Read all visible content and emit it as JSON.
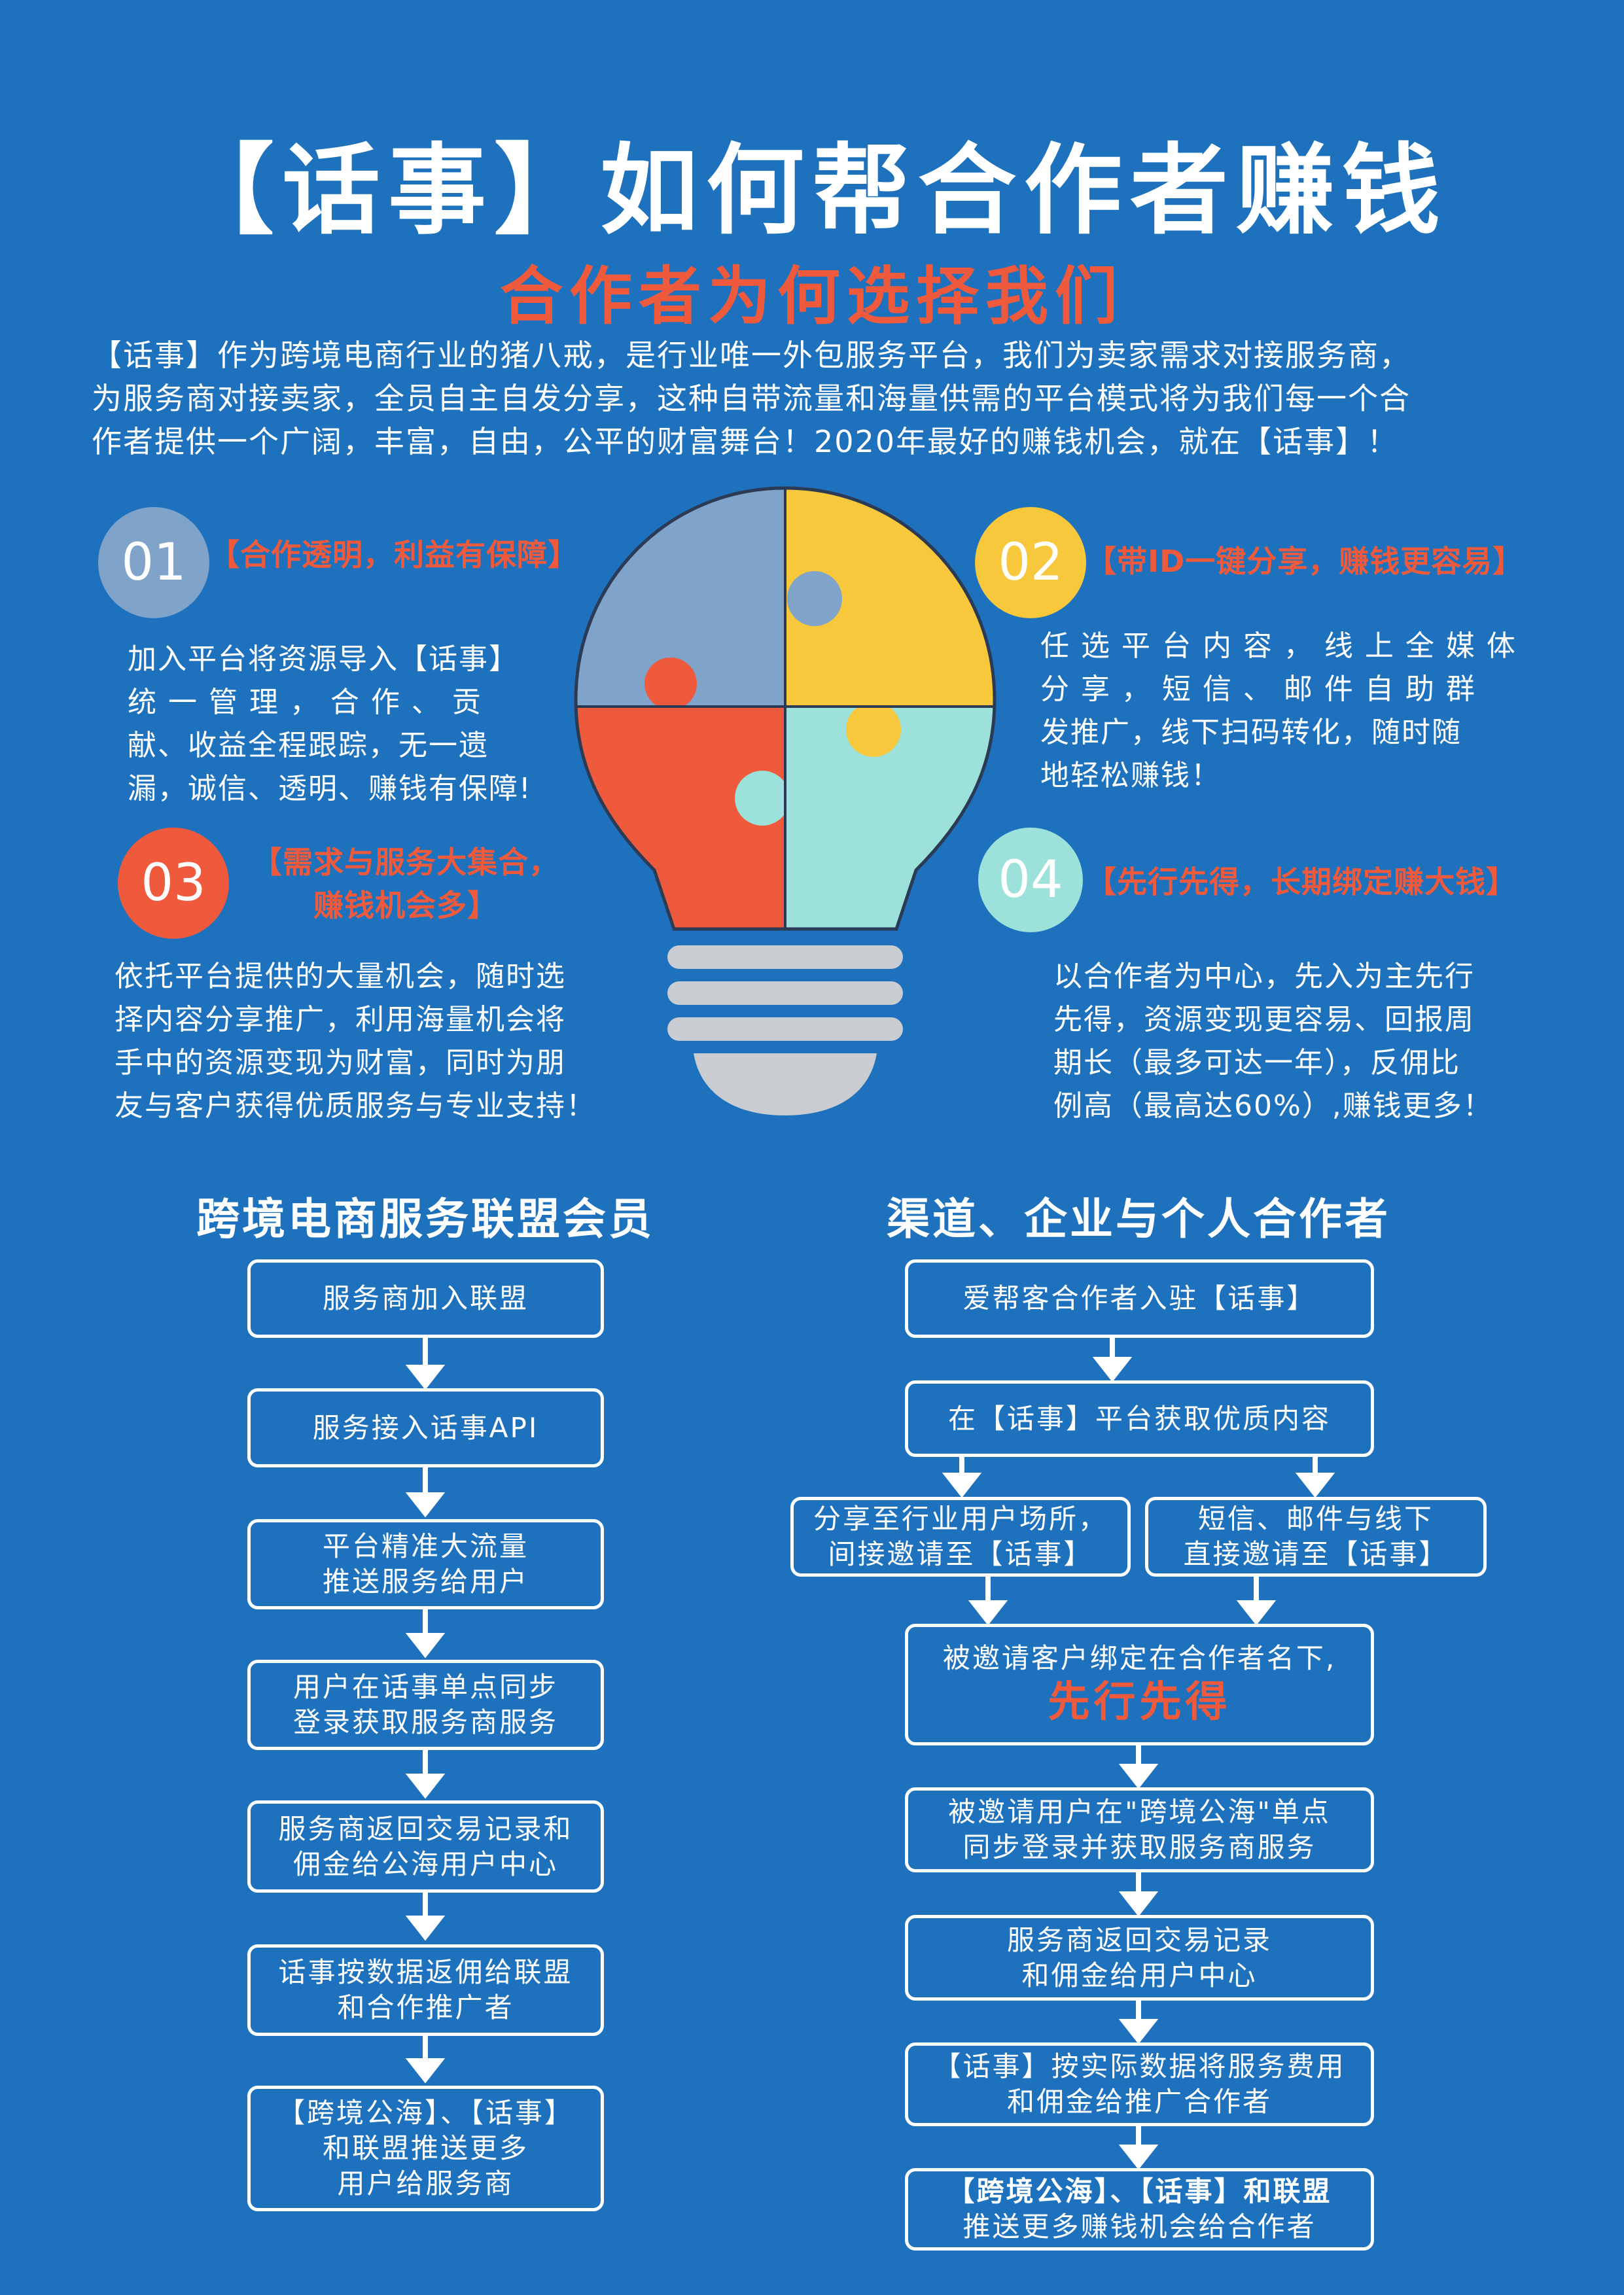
{
  "header": {
    "title": "【话事】如何帮合作者赚钱",
    "subtitle": "合作者为何选择我们",
    "intro_lines": [
      "【话事】作为跨境电商行业的猪八戒，是行业唯一外包服务平台，我们为卖家需求对接服务商，",
      "为服务商对接卖家，全员自主自发分享，这种自带流量和海量供需的平台模式将为我们每一个合",
      "作者提供一个广阔，丰富，自由，公平的财富舞台！2020年最好的赚钱机会，就在【话事】！"
    ]
  },
  "features": [
    {
      "number": "01",
      "title": "【合作透明，利益有保障】",
      "lines": [
        "加入平台将资源导入【话事】",
        "统 一 管 理 ， 合 作 、 贡",
        "献、收益全程跟踪，无一遗",
        "漏，诚信、透明、赚钱有保障!"
      ],
      "color": "#7FA3C9"
    },
    {
      "number": "02",
      "title": "【带ID一键分享，赚钱更容易】",
      "lines": [
        "任 选 平 台 内 容 ， 线 上 全 媒 体",
        "分 享 ， 短 信 、 邮 件 自 助 群",
        "发推广，线下扫码转化，随时随",
        "地轻松赚钱！"
      ],
      "color": "#F7C83B"
    },
    {
      "number": "03",
      "title_lines": [
        "【需求与服务大集合，",
        "赚钱机会多】"
      ],
      "lines": [
        "依托平台提供的大量机会，随时选",
        "择内容分享推广，利用海量机会将",
        "手中的资源变现为财富，同时为朋",
        "友与客户获得优质服务与专业支持！"
      ],
      "color": "#F05A3C"
    },
    {
      "number": "04",
      "title": "【先行先得，长期绑定赚大钱】",
      "lines": [
        "以合作者为中心，先入为主先行",
        "先得，资源变现更容易、回报周",
        "期长（最多可达一年），反佣比",
        "例高（最高达60%）,赚钱更多！"
      ],
      "color": "#9DE2DA"
    }
  ],
  "left_flow": {
    "title": "跨境电商服务联盟会员",
    "steps": [
      [
        "服务商加入联盟"
      ],
      [
        "服务接入话事API"
      ],
      [
        "平台精准大流量",
        "推送服务给用户"
      ],
      [
        "用户在话事单点同步",
        "登录获取服务商服务"
      ],
      [
        "服务商返回交易记录和",
        "佣金给公海用户中心"
      ],
      [
        "话事按数据返佣给联盟",
        "和合作推广者"
      ],
      [
        "【跨境公海】、【话事】",
        "和联盟推送更多",
        "用户给服务商"
      ]
    ]
  },
  "right_flow": {
    "title": "渠道、企业与个人合作者",
    "step1": "爱帮客合作者入驻【话事】",
    "step2": "在【话事】平台获取优质内容",
    "branch_left": [
      "分享至行业用户场所，",
      "间接邀请至【话事】"
    ],
    "branch_right": [
      "短信、邮件与线下",
      "直接邀请至【话事】"
    ],
    "step3": "被邀请客户绑定在合作者名下,",
    "step3_highlight": "先行先得",
    "step4": [
      "被邀请用户在\"跨境公海\"单点",
      "同步登录并获取服务商服务"
    ],
    "step5": [
      "服务商返回交易记录",
      "和佣金给用户中心"
    ],
    "step6": [
      "【话事】按实际数据将服务费用",
      "和佣金给推广合作者"
    ],
    "step7": [
      "【跨境公海】、【话事】和联盟",
      "推送更多赚钱机会给合作者"
    ]
  },
  "colors": {
    "background": "#1E72BD",
    "accent_red": "#F05A3C",
    "puzzle_blue": "#7FA3C9",
    "puzzle_yellow": "#F7C83B",
    "puzzle_red": "#F05A3C",
    "puzzle_teal": "#9DE2DA",
    "bulb_base": "#C9CDD1"
  }
}
